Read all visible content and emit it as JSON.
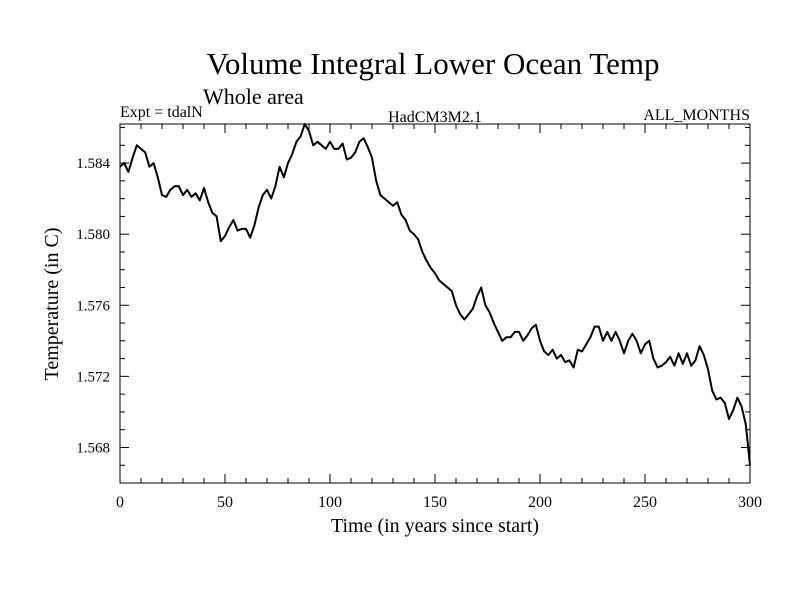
{
  "chart_data": {
    "type": "line",
    "title": "Volume Integral Lower Ocean Temp",
    "subtitle": "Whole area",
    "header_left": "Expt = tdalN",
    "header_center": "HadCM3M2.1",
    "header_right": "ALL_MONTHS",
    "xlabel": "Time (in years since start)",
    "ylabel": "Temperature (in C)",
    "xlim": [
      0,
      300
    ],
    "ylim": [
      1.566,
      1.5862
    ],
    "xticks": [
      0,
      50,
      100,
      150,
      200,
      250,
      300
    ],
    "xtick_labels": [
      "0",
      "50",
      "100",
      "150",
      "200",
      "250",
      "300"
    ],
    "yticks": [
      1.568,
      1.572,
      1.576,
      1.58,
      1.584
    ],
    "ytick_labels": [
      "1.568",
      "1.572",
      "1.576",
      "1.580",
      "1.584"
    ],
    "grid": false,
    "series": [
      {
        "name": "Temperature",
        "x": [
          0,
          2,
          4,
          6,
          8,
          10,
          12,
          14,
          16,
          18,
          20,
          22,
          24,
          26,
          28,
          30,
          32,
          34,
          36,
          38,
          40,
          42,
          44,
          46,
          48,
          50,
          52,
          54,
          56,
          58,
          60,
          62,
          64,
          66,
          68,
          70,
          72,
          74,
          76,
          78,
          80,
          82,
          84,
          86,
          88,
          90,
          92,
          94,
          96,
          98,
          100,
          102,
          104,
          106,
          108,
          110,
          112,
          114,
          116,
          118,
          120,
          122,
          124,
          126,
          128,
          130,
          132,
          134,
          136,
          138,
          140,
          142,
          144,
          146,
          148,
          150,
          152,
          154,
          156,
          158,
          160,
          162,
          164,
          166,
          168,
          170,
          172,
          174,
          176,
          178,
          180,
          182,
          184,
          186,
          188,
          190,
          192,
          194,
          196,
          198,
          200,
          202,
          204,
          206,
          208,
          210,
          212,
          214,
          216,
          218,
          220,
          222,
          224,
          226,
          228,
          230,
          232,
          234,
          236,
          238,
          240,
          242,
          244,
          246,
          248,
          250,
          252,
          254,
          256,
          258,
          260,
          262,
          264,
          266,
          268,
          270,
          272,
          274,
          276,
          278,
          280,
          282,
          284,
          286,
          288,
          290,
          292,
          294,
          296,
          298,
          300
        ],
        "values": [
          1.5838,
          1.584,
          1.5835,
          1.5843,
          1.585,
          1.5848,
          1.5846,
          1.5838,
          1.584,
          1.5832,
          1.5822,
          1.5821,
          1.5825,
          1.5827,
          1.5827,
          1.5822,
          1.5825,
          1.5821,
          1.5823,
          1.5819,
          1.5826,
          1.5818,
          1.5812,
          1.581,
          1.5796,
          1.5799,
          1.5804,
          1.5808,
          1.5802,
          1.5803,
          1.5803,
          1.5798,
          1.5805,
          1.5815,
          1.5822,
          1.5825,
          1.582,
          1.5827,
          1.5838,
          1.5832,
          1.584,
          1.5845,
          1.5852,
          1.5855,
          1.5862,
          1.5858,
          1.585,
          1.5852,
          1.585,
          1.5848,
          1.5852,
          1.5848,
          1.5848,
          1.5851,
          1.5842,
          1.5843,
          1.5846,
          1.5852,
          1.5854,
          1.5849,
          1.5843,
          1.583,
          1.5822,
          1.582,
          1.5818,
          1.5816,
          1.5818,
          1.5811,
          1.5808,
          1.5802,
          1.58,
          1.5797,
          1.579,
          1.5785,
          1.5781,
          1.5778,
          1.5774,
          1.5772,
          1.577,
          1.5768,
          1.576,
          1.5755,
          1.5752,
          1.5755,
          1.5758,
          1.5765,
          1.577,
          1.576,
          1.5756,
          1.575,
          1.5745,
          1.574,
          1.5742,
          1.5742,
          1.5745,
          1.5745,
          1.574,
          1.5743,
          1.5747,
          1.5749,
          1.574,
          1.5734,
          1.5732,
          1.5735,
          1.573,
          1.5732,
          1.5728,
          1.5729,
          1.5725,
          1.5735,
          1.5734,
          1.5738,
          1.5742,
          1.5748,
          1.5748,
          1.574,
          1.5745,
          1.574,
          1.5745,
          1.574,
          1.5733,
          1.574,
          1.5744,
          1.574,
          1.5733,
          1.5738,
          1.574,
          1.573,
          1.5725,
          1.5726,
          1.5728,
          1.5731,
          1.5726,
          1.5733,
          1.5727,
          1.5733,
          1.5726,
          1.5729,
          1.5737,
          1.5732,
          1.5724,
          1.5712,
          1.5707,
          1.5708,
          1.5705,
          1.5696,
          1.5701,
          1.5708,
          1.5703,
          1.5693,
          1.567
        ]
      }
    ]
  }
}
